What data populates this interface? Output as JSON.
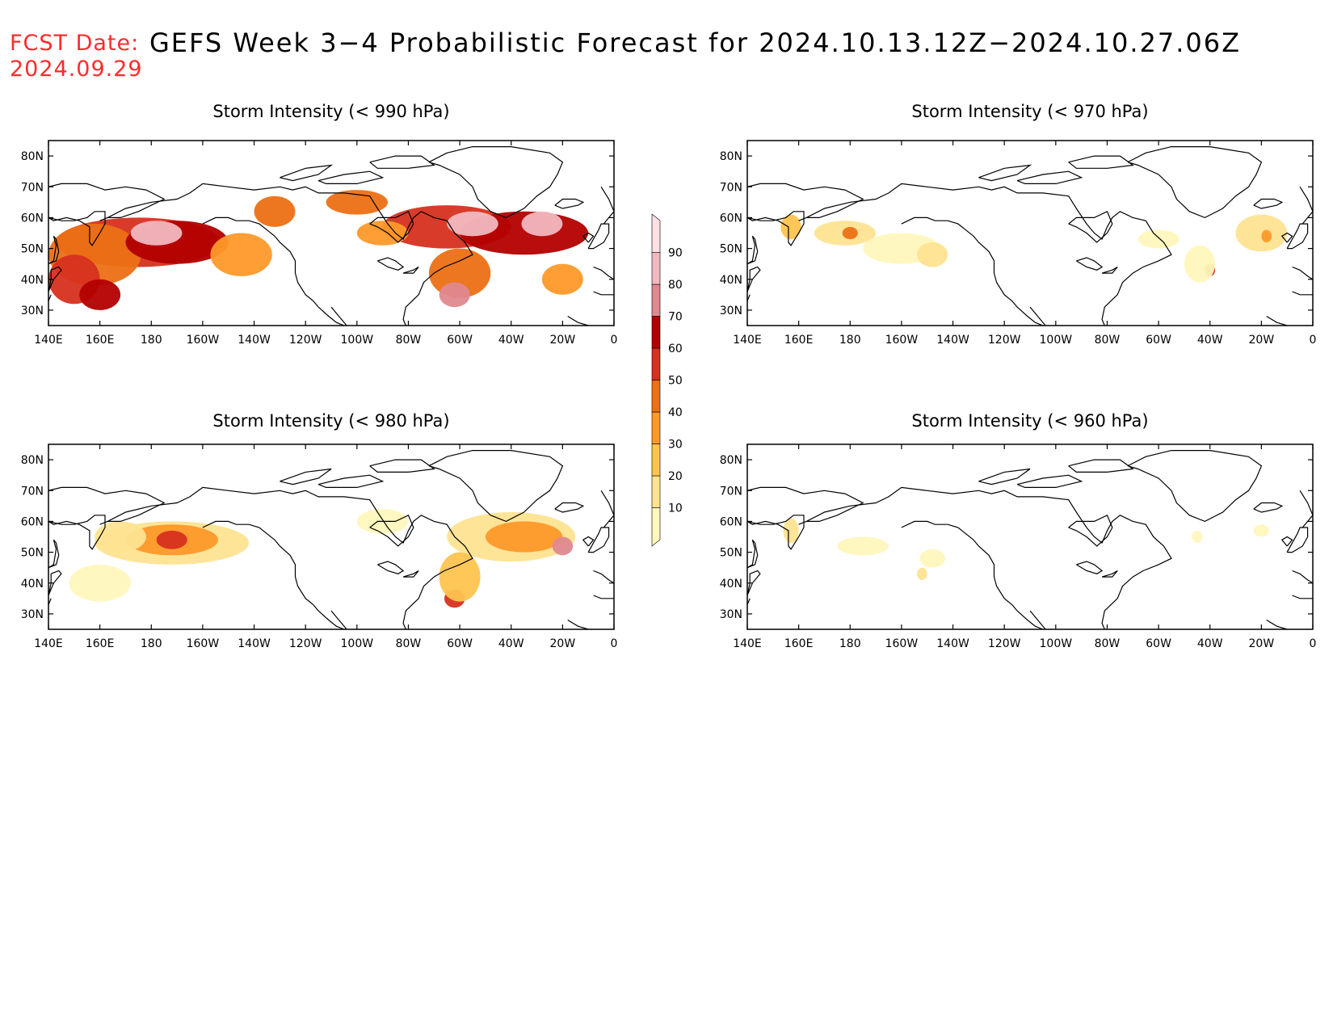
{
  "header": {
    "fcst_label": "FCST Date:",
    "fcst_date": "2024.09.29",
    "title": "GEFS Week 3−4 Probabilistic Forecast for 2024.10.13.12Z−2024.10.27.06Z"
  },
  "axes": {
    "x_ticks": [
      "140E",
      "160E",
      "180",
      "160W",
      "140W",
      "120W",
      "100W",
      "80W",
      "60W",
      "40W",
      "20W",
      "0"
    ],
    "y_ticks": [
      "80N",
      "70N",
      "60N",
      "50N",
      "40N",
      "30N"
    ]
  },
  "colorbar": {
    "levels": [
      "10",
      "20",
      "30",
      "40",
      "50",
      "60",
      "70",
      "80",
      "90"
    ],
    "colors": [
      "#fff7bc",
      "#fee391",
      "#fec44f",
      "#fe9929",
      "#ec7014",
      "#d7301f",
      "#b30000",
      "#e0888f",
      "#f2b8c0",
      "#fde0e4"
    ]
  },
  "panels": [
    {
      "title": "Storm Intensity (< 990 hPa)",
      "blobs": [
        {
          "lon": 175,
          "lat": 52,
          "rx": 32,
          "ry": 8,
          "level": 5
        },
        {
          "lon": 158,
          "lat": 48,
          "rx": 18,
          "ry": 10,
          "level": 4
        },
        {
          "lon": 190,
          "lat": 52,
          "rx": 20,
          "ry": 7,
          "level": 6
        },
        {
          "lon": 182,
          "lat": 55,
          "rx": 10,
          "ry": 4,
          "level": 8
        },
        {
          "lon": 150,
          "lat": 40,
          "rx": 10,
          "ry": 8,
          "level": 5
        },
        {
          "lon": 215,
          "lat": 48,
          "rx": 12,
          "ry": 7,
          "level": 3
        },
        {
          "lon": 228,
          "lat": 62,
          "rx": 8,
          "ry": 5,
          "level": 4
        },
        {
          "lon": 160,
          "lat": 35,
          "rx": 8,
          "ry": 5,
          "level": 6
        },
        {
          "lon": 295,
          "lat": 57,
          "rx": 25,
          "ry": 7,
          "level": 5
        },
        {
          "lon": 325,
          "lat": 55,
          "rx": 25,
          "ry": 7,
          "level": 6
        },
        {
          "lon": 305,
          "lat": 58,
          "rx": 10,
          "ry": 4,
          "level": 8
        },
        {
          "lon": 332,
          "lat": 58,
          "rx": 8,
          "ry": 4,
          "level": 8
        },
        {
          "lon": 300,
          "lat": 42,
          "rx": 12,
          "ry": 8,
          "level": 4
        },
        {
          "lon": 298,
          "lat": 35,
          "rx": 6,
          "ry": 4,
          "level": 7
        },
        {
          "lon": 260,
          "lat": 65,
          "rx": 12,
          "ry": 4,
          "level": 4
        },
        {
          "lon": 340,
          "lat": 40,
          "rx": 8,
          "ry": 5,
          "level": 3
        },
        {
          "lon": 270,
          "lat": 55,
          "rx": 10,
          "ry": 4,
          "level": 3
        }
      ]
    },
    {
      "title": "Storm Intensity (< 970 hPa)",
      "blobs": [
        {
          "lon": 178,
          "lat": 55,
          "rx": 12,
          "ry": 4,
          "level": 1
        },
        {
          "lon": 180,
          "lat": 55,
          "rx": 3,
          "ry": 2,
          "level": 4
        },
        {
          "lon": 157,
          "lat": 57,
          "rx": 4,
          "ry": 4,
          "level": 2
        },
        {
          "lon": 200,
          "lat": 50,
          "rx": 15,
          "ry": 5,
          "level": 0
        },
        {
          "lon": 212,
          "lat": 48,
          "rx": 6,
          "ry": 4,
          "level": 1
        },
        {
          "lon": 340,
          "lat": 55,
          "rx": 10,
          "ry": 6,
          "level": 1
        },
        {
          "lon": 342,
          "lat": 54,
          "rx": 2,
          "ry": 2,
          "level": 3
        },
        {
          "lon": 320,
          "lat": 43,
          "rx": 2,
          "ry": 2,
          "level": 5
        },
        {
          "lon": 316,
          "lat": 45,
          "rx": 6,
          "ry": 6,
          "level": 0
        },
        {
          "lon": 300,
          "lat": 53,
          "rx": 8,
          "ry": 3,
          "level": 0
        }
      ]
    },
    {
      "title": "Storm Intensity (< 980 hPa)",
      "blobs": [
        {
          "lon": 188,
          "lat": 53,
          "rx": 30,
          "ry": 7,
          "level": 1
        },
        {
          "lon": 188,
          "lat": 54,
          "rx": 18,
          "ry": 5,
          "level": 3
        },
        {
          "lon": 188,
          "lat": 54,
          "rx": 6,
          "ry": 3,
          "level": 5
        },
        {
          "lon": 168,
          "lat": 55,
          "rx": 10,
          "ry": 5,
          "level": 1
        },
        {
          "lon": 160,
          "lat": 40,
          "rx": 12,
          "ry": 6,
          "level": 0
        },
        {
          "lon": 320,
          "lat": 55,
          "rx": 25,
          "ry": 8,
          "level": 1
        },
        {
          "lon": 325,
          "lat": 55,
          "rx": 15,
          "ry": 5,
          "level": 3
        },
        {
          "lon": 340,
          "lat": 52,
          "rx": 4,
          "ry": 3,
          "level": 7
        },
        {
          "lon": 298,
          "lat": 35,
          "rx": 4,
          "ry": 3,
          "level": 5
        },
        {
          "lon": 300,
          "lat": 42,
          "rx": 8,
          "ry": 8,
          "level": 2
        },
        {
          "lon": 270,
          "lat": 60,
          "rx": 10,
          "ry": 4,
          "level": 0
        }
      ]
    },
    {
      "title": "Storm Intensity (< 960 hPa)",
      "blobs": [
        {
          "lon": 157,
          "lat": 57,
          "rx": 3,
          "ry": 4,
          "level": 1
        },
        {
          "lon": 185,
          "lat": 52,
          "rx": 10,
          "ry": 3,
          "level": 0
        },
        {
          "lon": 212,
          "lat": 48,
          "rx": 5,
          "ry": 3,
          "level": 0
        },
        {
          "lon": 208,
          "lat": 43,
          "rx": 2,
          "ry": 2,
          "level": 1
        },
        {
          "lon": 340,
          "lat": 57,
          "rx": 3,
          "ry": 2,
          "level": 0
        },
        {
          "lon": 315,
          "lat": 55,
          "rx": 2,
          "ry": 2,
          "level": 0
        }
      ]
    }
  ]
}
